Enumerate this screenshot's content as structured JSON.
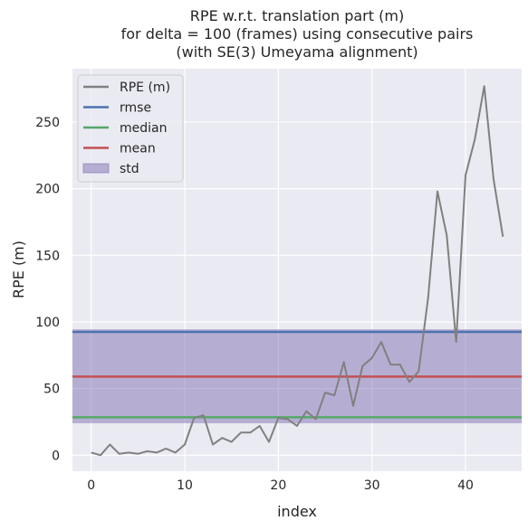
{
  "chart_data": {
    "type": "line",
    "title": [
      "RPE w.r.t. translation part (m)",
      "for delta = 100 (frames) using consecutive pairs",
      "(with SE(3) Umeyama alignment)"
    ],
    "xlabel": "index",
    "ylabel": "RPE (m)",
    "xlim": [
      -2,
      46
    ],
    "ylim": [
      -12,
      290
    ],
    "xticks": [
      0,
      10,
      20,
      30,
      40
    ],
    "yticks": [
      0,
      50,
      100,
      150,
      200,
      250
    ],
    "grid": true,
    "legend_position": "top-left",
    "series": [
      {
        "name": "RPE (m)",
        "color": "#808080",
        "x": [
          0,
          1,
          2,
          3,
          4,
          5,
          6,
          7,
          8,
          9,
          10,
          11,
          12,
          13,
          14,
          15,
          16,
          17,
          18,
          19,
          20,
          21,
          22,
          23,
          24,
          25,
          26,
          27,
          28,
          29,
          30,
          31,
          32,
          33,
          34,
          35,
          36,
          37,
          38,
          39,
          40,
          41,
          42,
          43,
          44
        ],
        "y": [
          2,
          0,
          8,
          1,
          2,
          1,
          3,
          2,
          5,
          2,
          8,
          28,
          30,
          8,
          13,
          10,
          17,
          17,
          22,
          10,
          28,
          27,
          22,
          33,
          27,
          47,
          45,
          70,
          37,
          67,
          73,
          85,
          68,
          68,
          55,
          63,
          118,
          198,
          165,
          85,
          210,
          237,
          277,
          207,
          164
        ]
      }
    ],
    "stats": [
      {
        "name": "rmse",
        "value": 92.5,
        "color": "#4c72b0"
      },
      {
        "name": "median",
        "value": 28.5,
        "color": "#55a868"
      },
      {
        "name": "mean",
        "value": 59.0,
        "color": "#c44e52"
      }
    ],
    "std": {
      "name": "std",
      "low": 24.0,
      "high": 94.5,
      "color": "#8172b2"
    }
  }
}
